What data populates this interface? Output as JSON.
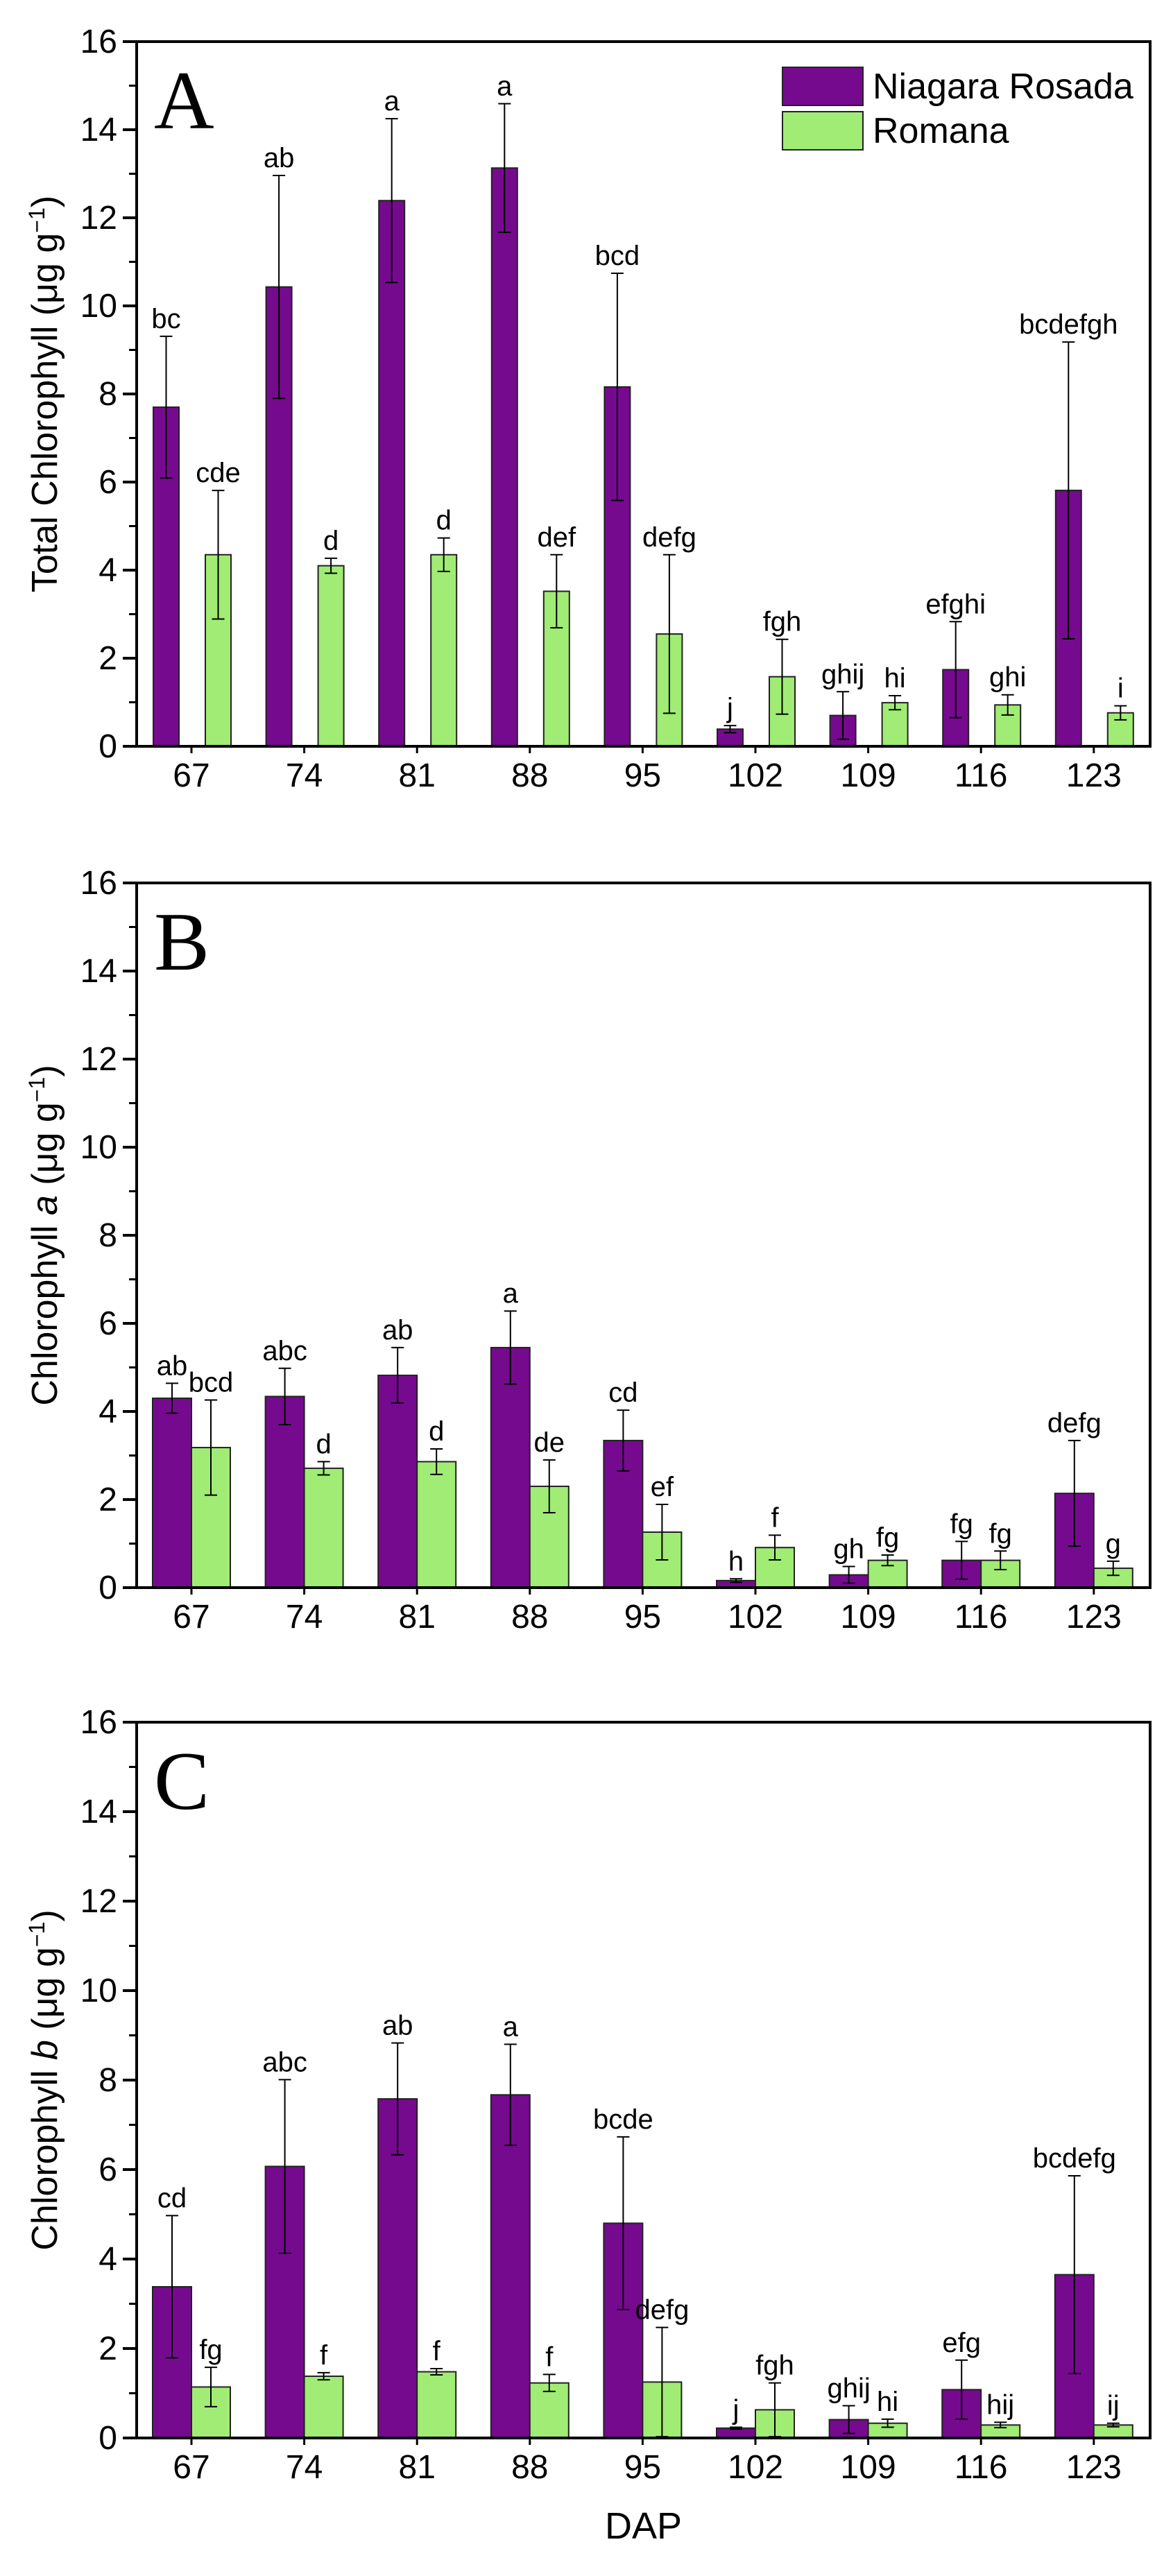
{
  "colors": {
    "Niagara Rosada": "#760a8f",
    "Romana": "#a0ec74",
    "axis": "#000000"
  },
  "xlabel": "DAP",
  "chart_data": [
    {
      "type": "bar",
      "panel": "A",
      "ylabel": {
        "prefix": "Total Chlorophyll",
        "italic": "",
        "unit": " (μg g",
        "sup": "−1",
        "close": ")"
      },
      "ylim": [
        0,
        16
      ],
      "yticks": [
        "0",
        "2",
        "4",
        "6",
        "8",
        "10",
        "12",
        "14",
        "16"
      ],
      "categories": [
        "67",
        "74",
        "81",
        "88",
        "95",
        "102",
        "109",
        "116",
        "123"
      ],
      "legend": "top-right",
      "series": [
        {
          "name": "Niagara Rosada",
          "values": [
            7.7,
            10.43,
            12.39,
            13.13,
            8.16,
            0.39,
            0.7,
            1.74,
            5.81
          ],
          "errors": [
            1.61,
            2.53,
            1.86,
            1.46,
            2.58,
            0.08,
            0.54,
            1.09,
            3.37
          ],
          "letters": [
            "bc",
            "ab",
            "a",
            "a",
            "bcd",
            "j",
            "ghij",
            "efghi",
            "bcdefgh"
          ]
        },
        {
          "name": "Romana",
          "values": [
            4.35,
            4.1,
            4.35,
            3.52,
            2.55,
            1.58,
            0.99,
            0.94,
            0.76
          ],
          "errors": [
            1.46,
            0.17,
            0.38,
            0.83,
            1.8,
            0.85,
            0.16,
            0.23,
            0.16
          ],
          "letters": [
            "cde",
            "d",
            "d",
            "def",
            "defg",
            "fgh",
            "hi",
            "ghi",
            "i"
          ]
        }
      ]
    },
    {
      "type": "bar",
      "panel": "B",
      "ylabel": {
        "prefix": "Chlorophyll ",
        "italic": "a",
        "unit": " (μg g",
        "sup": "−1",
        "close": ")"
      },
      "ylim": [
        0,
        16
      ],
      "yticks": [
        "0",
        "2",
        "4",
        "6",
        "8",
        "10",
        "12",
        "14",
        "16"
      ],
      "categories": [
        "67",
        "74",
        "81",
        "88",
        "95",
        "102",
        "109",
        "116",
        "123"
      ],
      "series": [
        {
          "name": "Niagara Rosada",
          "values": [
            4.3,
            4.34,
            4.82,
            5.45,
            3.34,
            0.16,
            0.29,
            0.62,
            2.14
          ],
          "errors": [
            0.34,
            0.64,
            0.63,
            0.83,
            0.69,
            0.04,
            0.19,
            0.43,
            1.2
          ],
          "letters": [
            "ab",
            "abc",
            "ab",
            "a",
            "cd",
            "h",
            "gh",
            "fg",
            "defg"
          ]
        },
        {
          "name": "Romana",
          "values": [
            3.18,
            2.71,
            2.86,
            2.3,
            1.26,
            0.91,
            0.62,
            0.62,
            0.44
          ],
          "errors": [
            1.08,
            0.15,
            0.29,
            0.6,
            0.63,
            0.28,
            0.12,
            0.21,
            0.16
          ],
          "letters": [
            "bcd",
            "d",
            "d",
            "de",
            "ef",
            "f",
            "fg",
            "fg",
            "g"
          ]
        }
      ]
    },
    {
      "type": "bar",
      "panel": "C",
      "ylabel": {
        "prefix": "Chlorophyll ",
        "italic": "b",
        "unit": " (μg g",
        "sup": "−1",
        "close": ")"
      },
      "ylim": [
        0,
        16
      ],
      "yticks": [
        "0",
        "2",
        "4",
        "6",
        "8",
        "10",
        "12",
        "14",
        "16"
      ],
      "categories": [
        "67",
        "74",
        "81",
        "88",
        "95",
        "102",
        "109",
        "116",
        "123"
      ],
      "series": [
        {
          "name": "Niagara Rosada",
          "values": [
            3.38,
            6.07,
            7.58,
            7.67,
            4.8,
            0.22,
            0.41,
            1.08,
            3.65
          ],
          "errors": [
            1.59,
            1.94,
            1.25,
            1.13,
            1.93,
            0.02,
            0.31,
            0.66,
            2.21
          ],
          "letters": [
            "cd",
            "abc",
            "ab",
            "a",
            "bcde",
            "j",
            "ghij",
            "efg",
            "bcdefg"
          ]
        },
        {
          "name": "Romana",
          "values": [
            1.14,
            1.38,
            1.48,
            1.23,
            1.25,
            0.63,
            0.33,
            0.29,
            0.29
          ],
          "errors": [
            0.44,
            0.08,
            0.07,
            0.19,
            1.22,
            0.6,
            0.09,
            0.06,
            0.04
          ],
          "letters": [
            "fg",
            "f",
            "f",
            "f",
            "defg",
            "fgh",
            "hi",
            "hij",
            "ij"
          ]
        }
      ]
    }
  ]
}
